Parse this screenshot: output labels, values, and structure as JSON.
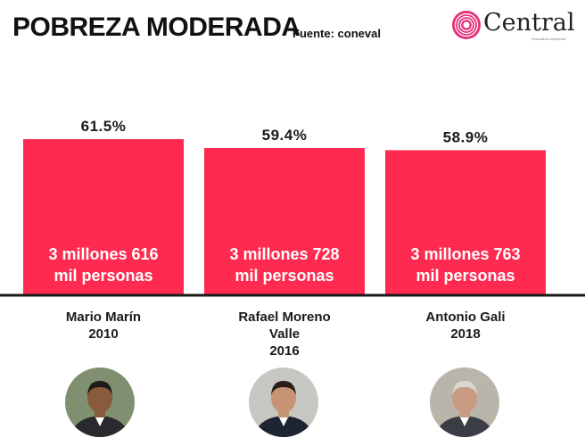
{
  "header": {
    "title": "POBREZA MODERADA",
    "source": "Fuente: coneval",
    "logo_text": "Central",
    "logo_tagline": "Periodismo Interpreta"
  },
  "colors": {
    "bar": "#ff2a4f",
    "axis": "#1a1a1a",
    "logo_pink": "#e5317a"
  },
  "chart_data": {
    "type": "bar",
    "categories": [
      "Mario Marín 2010",
      "Rafael Moreno Valle 2016",
      "Antonio Gali 2018"
    ],
    "category_lines": [
      [
        "Mario Marín",
        "2010"
      ],
      [
        "Rafael Moreno",
        "Valle",
        "2016"
      ],
      [
        "Antonio Gali",
        "2018"
      ]
    ],
    "values": [
      61.5,
      59.4,
      58.9
    ],
    "value_labels": [
      "61.5%",
      "59.4%",
      "58.9%"
    ],
    "bar_text": [
      [
        "3 millones 616",
        "mil personas"
      ],
      [
        "3 millones 728",
        "mil personas"
      ],
      [
        "3 millones 763",
        "mil personas"
      ]
    ],
    "title": "POBREZA MODERADA",
    "xlabel": "",
    "ylabel": "",
    "ylim": [
      25,
      65
    ],
    "grid": false,
    "legend": "none"
  },
  "portraits": [
    {
      "name": "portrait-mario-marin",
      "bg": "#7f8f6f",
      "skin": "#8a5a3c",
      "hair": "#1e1a18",
      "shirt": "#2a2a2e"
    },
    {
      "name": "portrait-rafael-moreno-valle",
      "bg": "#c7c7c2",
      "skin": "#c69474",
      "hair": "#2a1e18",
      "shirt": "#1f2433"
    },
    {
      "name": "portrait-antonio-gali",
      "bg": "#b9b5ab",
      "skin": "#c99a82",
      "hair": "#d9d5cf",
      "shirt": "#3a3d44"
    }
  ]
}
